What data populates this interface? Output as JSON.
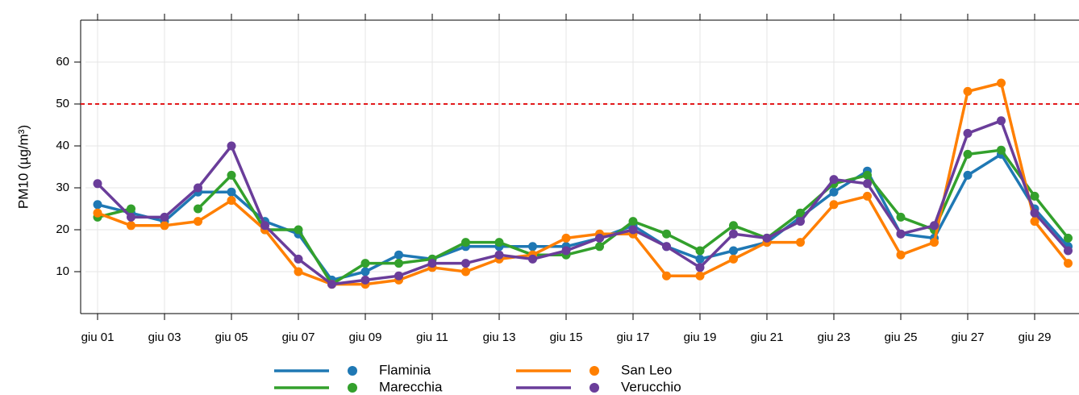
{
  "chart_data": {
    "type": "line",
    "y_label": "PM10 (µg/m³)",
    "categories": [
      "giu 01",
      null,
      "giu 03",
      null,
      "giu 05",
      null,
      "giu 07",
      null,
      "giu 09",
      null,
      "giu 11",
      null,
      "giu 13",
      null,
      "giu 15",
      null,
      "giu 17",
      null,
      "giu 19",
      null,
      "giu 21",
      null,
      "giu 23",
      null,
      "giu 25",
      null,
      "giu 27",
      null,
      "giu 29",
      null
    ],
    "series": [
      {
        "name": "Flaminia",
        "color": "#1f78b4",
        "values": [
          26,
          24,
          22,
          29,
          29,
          22,
          19,
          8,
          10,
          14,
          13,
          16,
          16,
          16,
          16,
          18,
          21,
          16,
          13,
          15,
          17,
          23,
          29,
          34,
          19,
          18,
          33,
          38,
          25,
          16
        ]
      },
      {
        "name": "Marecchia",
        "color": "#33a02c",
        "values": [
          23,
          25,
          null,
          25,
          33,
          20,
          20,
          7,
          12,
          12,
          13,
          17,
          17,
          14,
          14,
          16,
          22,
          19,
          15,
          21,
          18,
          24,
          31,
          33,
          23,
          20,
          38,
          39,
          28,
          18
        ]
      },
      {
        "name": "San Leo",
        "color": "#ff7f00",
        "values": [
          24,
          21,
          21,
          22,
          27,
          20,
          10,
          7,
          7,
          8,
          11,
          10,
          13,
          14,
          18,
          19,
          19,
          9,
          9,
          13,
          17,
          17,
          26,
          28,
          14,
          17,
          53,
          55,
          22,
          12
        ]
      },
      {
        "name": "Verucchio",
        "color": "#6a3d9a",
        "values": [
          31,
          23,
          23,
          30,
          40,
          21,
          13,
          7,
          8,
          9,
          12,
          12,
          14,
          13,
          15,
          18,
          20,
          16,
          11,
          19,
          18,
          22,
          32,
          31,
          19,
          21,
          43,
          46,
          24,
          15
        ]
      }
    ],
    "threshold": {
      "value": 50,
      "color": "#e31a1c"
    },
    "ylim": [
      0,
      70
    ],
    "yticks": [
      10,
      20,
      30,
      40,
      50,
      60
    ],
    "grid": true
  }
}
